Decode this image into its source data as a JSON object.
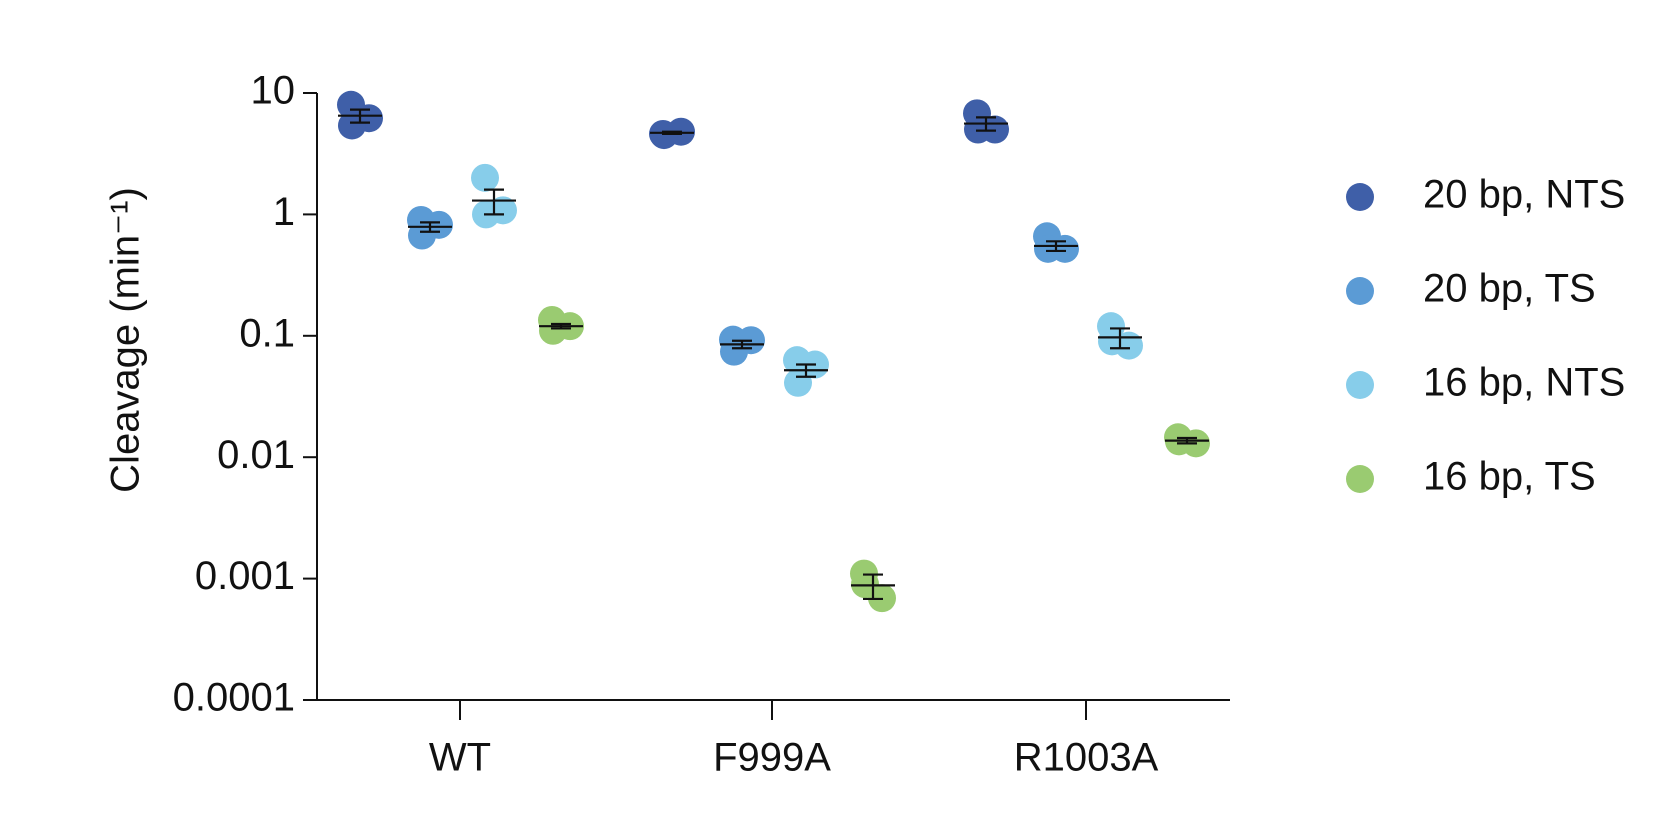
{
  "chart_data": {
    "type": "dot",
    "y_label": "Cleavage (min⁻¹)",
    "categories": [
      "WT",
      "F999A",
      "R1003A"
    ],
    "ylim": [
      0.0001,
      10
    ],
    "yticks": [
      0.0001,
      0.001,
      0.01,
      0.1,
      1,
      10
    ],
    "log_scale": true,
    "legend": "right",
    "series": [
      {
        "name": "20 bp, NTS",
        "color": "#3f5fa8",
        "values": [
          6.5,
          4.7,
          5.6
        ],
        "errors": [
          0.8,
          0.1,
          0.7
        ],
        "replicates": [
          [
            8.0,
            6.2,
            5.4
          ],
          [
            4.6,
            4.8,
            4.5
          ],
          [
            6.8,
            5.0,
            5.0
          ]
        ]
      },
      {
        "name": "20 bp, TS",
        "color": "#5b9bd5",
        "values": [
          0.79,
          0.085,
          0.55
        ],
        "errors": [
          0.07,
          0.006,
          0.05
        ],
        "replicates": [
          [
            0.9,
            0.82,
            0.67
          ],
          [
            0.093,
            0.092,
            0.074
          ],
          [
            0.66,
            0.52,
            0.52
          ]
        ]
      },
      {
        "name": "16 bp, NTS",
        "color": "#87cdea",
        "values": [
          1.3,
          0.052,
          0.097
        ],
        "errors": [
          0.3,
          0.006,
          0.018
        ],
        "replicates": [
          [
            2.0,
            1.08,
            1.0
          ],
          [
            0.063,
            0.058,
            0.041
          ],
          [
            0.12,
            0.083,
            0.09
          ]
        ]
      },
      {
        "name": "16 bp, TS",
        "color": "#9acb71",
        "values": [
          0.12,
          0.00088,
          0.0137
        ],
        "errors": [
          0.005,
          0.0002,
          0.0007
        ],
        "replicates": [
          [
            0.135,
            0.12,
            0.11
          ],
          [
            0.0011,
            0.00069,
            0.0009
          ],
          [
            0.0146,
            0.013,
            0.0135
          ]
        ]
      }
    ]
  }
}
